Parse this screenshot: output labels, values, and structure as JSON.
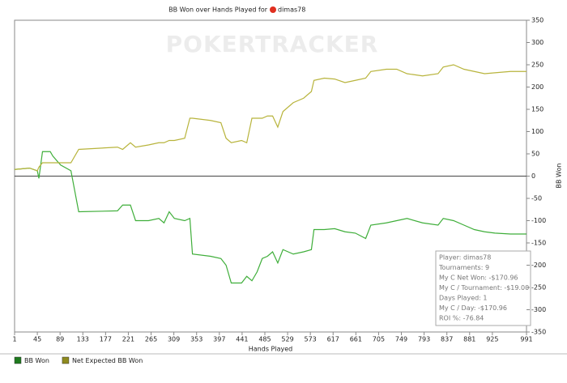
{
  "chart_data": {
    "type": "line",
    "title": "BB Won over Hands Played for",
    "player": "dimas78",
    "watermark": "POKERTRACKER",
    "x_label": "Hands Played",
    "y_label": "BB Won",
    "x": [
      1,
      30,
      45,
      48,
      55,
      70,
      75,
      90,
      110,
      125,
      200,
      210,
      225,
      235,
      260,
      280,
      290,
      300,
      310,
      330,
      340,
      345,
      380,
      400,
      410,
      420,
      440,
      450,
      460,
      470,
      480,
      490,
      500,
      510,
      520,
      540,
      560,
      575,
      580,
      600,
      620,
      640,
      660,
      680,
      690,
      720,
      740,
      760,
      790,
      820,
      830,
      850,
      870,
      890,
      910,
      930,
      960,
      991
    ],
    "series": [
      {
        "name": "BB Won",
        "color": "#3fae3a",
        "values": [
          15,
          18,
          12,
          -5,
          55,
          55,
          45,
          25,
          12,
          -80,
          -78,
          -65,
          -65,
          -100,
          -100,
          -95,
          -105,
          -80,
          -95,
          -100,
          -95,
          -175,
          -180,
          -185,
          -200,
          -240,
          -240,
          -225,
          -235,
          -215,
          -185,
          -180,
          -170,
          -195,
          -165,
          -175,
          -170,
          -165,
          -120,
          -120,
          -118,
          -125,
          -128,
          -140,
          -110,
          -105,
          -100,
          -95,
          -105,
          -110,
          -95,
          -100,
          -110,
          -120,
          -125,
          -128,
          -130,
          -130
        ]
      },
      {
        "name": "Net Expected BB Won",
        "color": "#b8b43c",
        "values": [
          15,
          18,
          12,
          20,
          30,
          30,
          30,
          30,
          30,
          60,
          65,
          60,
          75,
          65,
          70,
          75,
          75,
          80,
          80,
          85,
          130,
          130,
          125,
          120,
          85,
          75,
          80,
          75,
          130,
          130,
          130,
          135,
          135,
          110,
          145,
          165,
          175,
          190,
          215,
          220,
          218,
          210,
          215,
          220,
          235,
          240,
          240,
          230,
          225,
          230,
          245,
          250,
          240,
          235,
          230,
          232,
          235,
          235
        ]
      }
    ],
    "legend_colors": [
      "#1e7a1e",
      "#8f8b1e"
    ],
    "xlim": [
      1,
      991
    ],
    "xticks": [
      1,
      45,
      89,
      133,
      177,
      221,
      265,
      309,
      353,
      397,
      441,
      485,
      529,
      573,
      617,
      661,
      705,
      749,
      793,
      837,
      881,
      925,
      991
    ],
    "ylim": [
      -350,
      350
    ],
    "yticks": [
      -350,
      -300,
      -250,
      -200,
      -150,
      -100,
      -50,
      0,
      50,
      100,
      150,
      200,
      250,
      300,
      350
    ],
    "stats_box": [
      "Player: dimas78",
      "Tournaments: 9",
      "My C Net Won: -$170.96",
      "My C / Tournament: -$19.00",
      "Days Played: 1",
      "My C / Day: -$170.96",
      "ROI %: -76.84"
    ]
  }
}
